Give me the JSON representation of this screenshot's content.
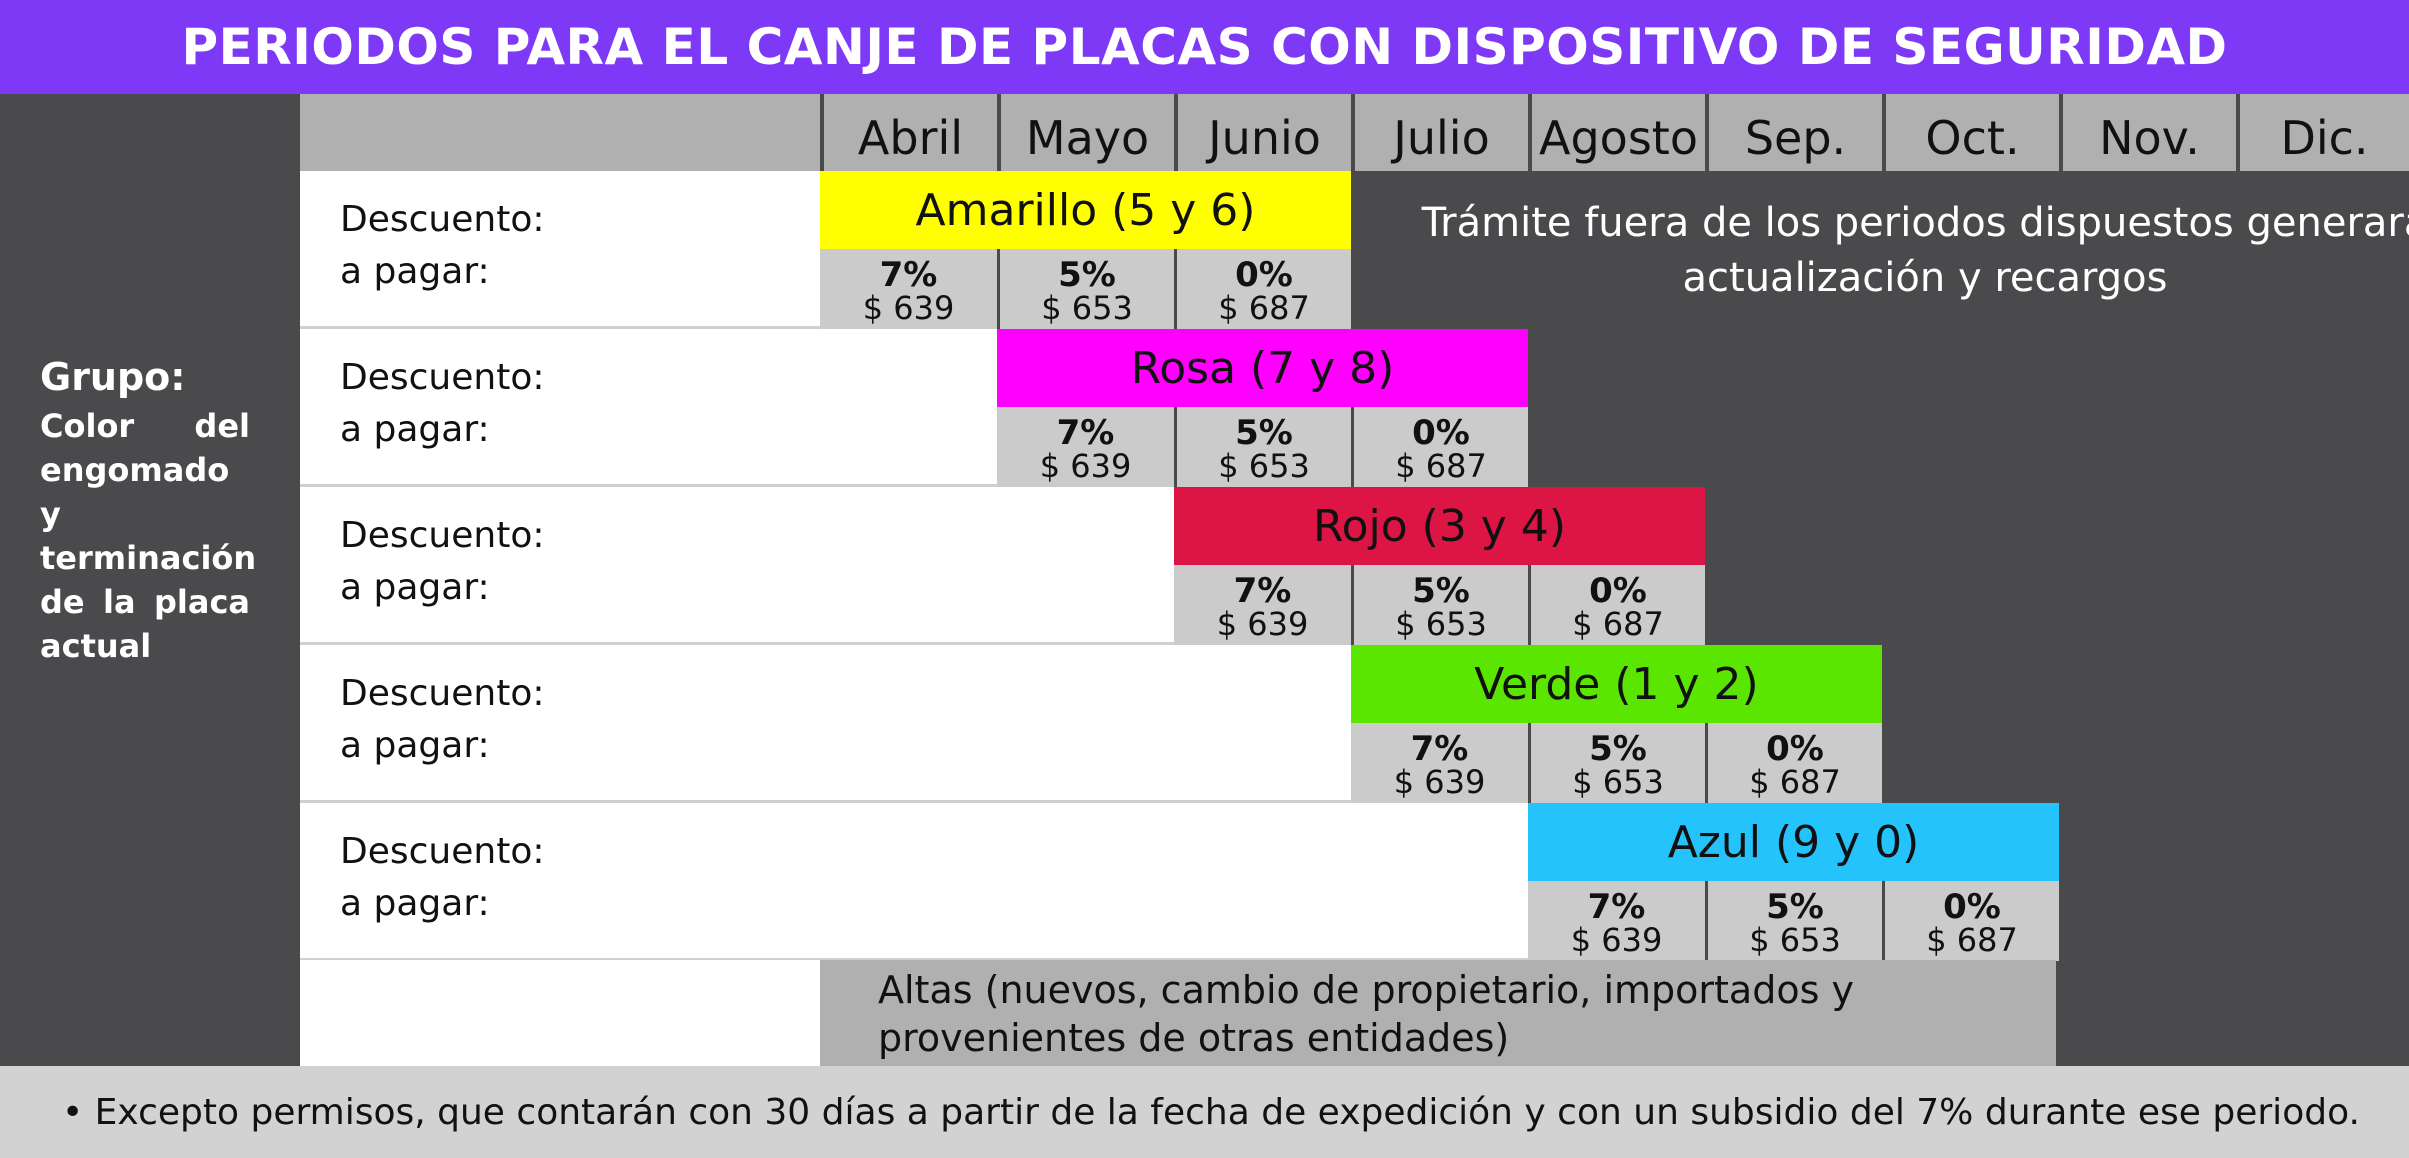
{
  "title": "PERIODOS PARA EL CANJE DE PLACAS CON DISPOSITIVO DE SEGURIDAD",
  "left_panel": {
    "grupo_title": "Grupo:",
    "grupo_desc": "Color del engomado y terminación de la placa actual"
  },
  "months": [
    "Abril",
    "Mayo",
    "Junio",
    "Julio",
    "Agosto",
    "Sep.",
    "Oct.",
    "Nov.",
    "Dic."
  ],
  "row_labels": {
    "descuento": "Descuento:",
    "pagar": "a pagar:"
  },
  "groups": [
    {
      "name": "Amarillo (5 y 6)",
      "color": "#ffff00",
      "start_month": 0,
      "cells": [
        {
          "pct": "7%",
          "amt": "$ 639"
        },
        {
          "pct": "5%",
          "amt": "$ 653"
        },
        {
          "pct": "0%",
          "amt": "$ 687"
        }
      ]
    },
    {
      "name": "Rosa (7 y 8)",
      "color": "#ff00ff",
      "start_month": 1,
      "cells": [
        {
          "pct": "7%",
          "amt": "$ 639"
        },
        {
          "pct": "5%",
          "amt": "$ 653"
        },
        {
          "pct": "0%",
          "amt": "$ 687"
        }
      ]
    },
    {
      "name": "Rojo (3 y 4)",
      "color": "#dc1545",
      "start_month": 2,
      "cells": [
        {
          "pct": "7%",
          "amt": "$ 639"
        },
        {
          "pct": "5%",
          "amt": "$ 653"
        },
        {
          "pct": "0%",
          "amt": "$ 687"
        }
      ]
    },
    {
      "name": "Verde (1 y 2)",
      "color": "#5ae600",
      "start_month": 3,
      "cells": [
        {
          "pct": "7%",
          "amt": "$ 639"
        },
        {
          "pct": "5%",
          "amt": "$ 653"
        },
        {
          "pct": "0%",
          "amt": "$ 687"
        }
      ]
    },
    {
      "name": "Azul (9 y 0)",
      "color": "#25c3fb",
      "start_month": 4,
      "cells": [
        {
          "pct": "7%",
          "amt": "$ 639"
        },
        {
          "pct": "5%",
          "amt": "$ 653"
        },
        {
          "pct": "0%",
          "amt": "$ 687"
        }
      ]
    }
  ],
  "tramite_note": "Trámite fuera de los periodos dispuestos generará actualización y recargos",
  "altas_note": "Altas (nuevos, cambio de propietario, importados y provenientes de otras entidades)",
  "footer_note": "• Excepto permisos, que contarán con 30 días a partir de la fecha de expedición y con un  subsidio del 7% durante ese periodo."
}
